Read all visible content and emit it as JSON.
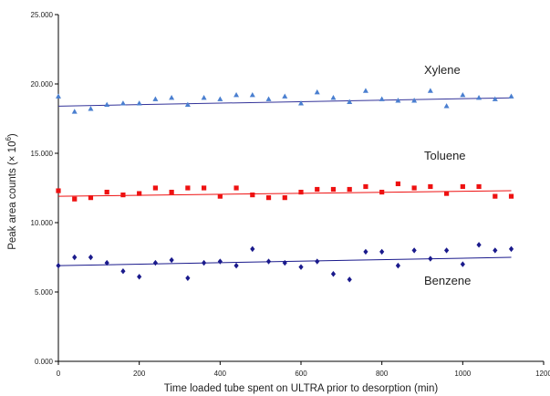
{
  "chart_data": {
    "type": "scatter",
    "xlabel": "Time loaded tube spent on ULTRA prior to desorption (min)",
    "ylabel": "Peak area counts (× 10",
    "ylabel_sup": "6",
    "ylabel_close": ")",
    "xlim": [
      0,
      1200
    ],
    "ylim": [
      0,
      25000
    ],
    "x_ticks": [
      0,
      200,
      400,
      600,
      800,
      1000,
      1200
    ],
    "x_tick_labels": [
      "0",
      "200",
      "400",
      "600",
      "800",
      "1000",
      "1200"
    ],
    "y_ticks": [
      0,
      5000,
      10000,
      15000,
      20000,
      25000
    ],
    "y_tick_labels": [
      "0.000",
      "5.000",
      "10.000",
      "15.000",
      "20.000",
      "25.000"
    ],
    "grid": false,
    "series": [
      {
        "name": "Xylene",
        "marker": "triangle",
        "color": "#4a7fd0",
        "line_color": "#333399",
        "x": [
          0,
          40,
          80,
          120,
          160,
          200,
          240,
          280,
          320,
          360,
          400,
          440,
          480,
          520,
          560,
          600,
          640,
          680,
          720,
          760,
          800,
          840,
          880,
          920,
          960,
          1000,
          1040,
          1080,
          1120
        ],
        "y": [
          19100,
          18000,
          18200,
          18500,
          18600,
          18600,
          18900,
          19000,
          18500,
          19000,
          18900,
          19200,
          19200,
          18900,
          19100,
          18600,
          19400,
          19000,
          18700,
          19500,
          18900,
          18800,
          18800,
          19500,
          18400,
          19200,
          19000,
          18900,
          19100
        ],
        "trend": [
          18400,
          19000
        ]
      },
      {
        "name": "Toluene",
        "marker": "square",
        "color": "#ee1111",
        "line_color": "#ee1111",
        "x": [
          0,
          40,
          80,
          120,
          160,
          200,
          240,
          280,
          320,
          360,
          400,
          440,
          480,
          520,
          560,
          600,
          640,
          680,
          720,
          760,
          800,
          840,
          880,
          920,
          960,
          1000,
          1040,
          1080,
          1120
        ],
        "y": [
          12300,
          11700,
          11800,
          12200,
          12000,
          12100,
          12500,
          12200,
          12500,
          12500,
          11900,
          12500,
          12000,
          11800,
          11800,
          12200,
          12400,
          12400,
          12400,
          12600,
          12200,
          12800,
          12500,
          12600,
          12100,
          12600,
          12600,
          11900,
          11900
        ],
        "trend": [
          11900,
          12300
        ]
      },
      {
        "name": "Benzene",
        "marker": "diamond",
        "color": "#1a1a8c",
        "line_color": "#1a1a8c",
        "x": [
          0,
          40,
          80,
          120,
          160,
          200,
          240,
          280,
          320,
          360,
          400,
          440,
          480,
          520,
          560,
          600,
          640,
          680,
          720,
          760,
          800,
          840,
          880,
          920,
          960,
          1000,
          1040,
          1080,
          1120
        ],
        "y": [
          6900,
          7500,
          7500,
          7100,
          6500,
          6100,
          7100,
          7300,
          6000,
          7100,
          7200,
          6900,
          8100,
          7200,
          7100,
          6800,
          7200,
          6300,
          5900,
          7900,
          7900,
          6900,
          8000,
          7400,
          8000,
          7000,
          8400,
          8000,
          8100
        ],
        "trend": [
          6900,
          7500
        ]
      }
    ],
    "series_label_positions": [
      {
        "name": "Xylene",
        "x": 900,
        "y": 21000
      },
      {
        "name": "Toluene",
        "x": 900,
        "y": 14800
      },
      {
        "name": "Benzene",
        "x": 900,
        "y": 5800
      }
    ]
  }
}
